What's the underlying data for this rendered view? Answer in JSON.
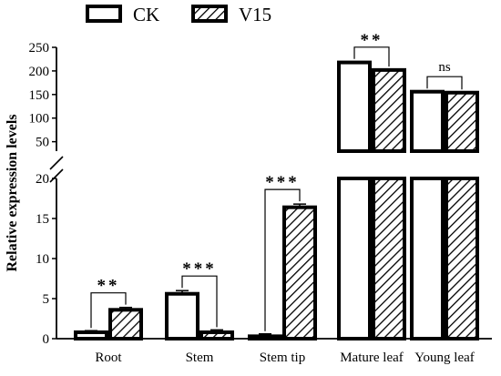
{
  "colors": {
    "ck_fill": "#ffffff",
    "v15_hatch": "#000000",
    "axis": "#000000"
  },
  "legend": [
    {
      "name": "CK",
      "pattern": "solid-white"
    },
    {
      "name": "V15",
      "pattern": "diagonal-hatch"
    }
  ],
  "chart_data": {
    "type": "bar",
    "ylabel": "Relative expression levels",
    "categories": [
      "Root",
      "Stem",
      "Stem tip",
      "Mature leaf",
      "Young leaf"
    ],
    "series": [
      {
        "name": "CK",
        "values": [
          0.8,
          5.6,
          0.3,
          218,
          156
        ],
        "errors": [
          0.2,
          0.4,
          0.3,
          1.5,
          1.0
        ]
      },
      {
        "name": "V15",
        "values": [
          3.6,
          0.8,
          16.4,
          202,
          154
        ],
        "errors": [
          0.3,
          0.3,
          0.4,
          1.5,
          1.0
        ]
      }
    ],
    "broken_axis": {
      "lower": {
        "ylim": [
          0,
          20
        ],
        "ticks": [
          "0",
          "5",
          "10",
          "15",
          "20"
        ]
      },
      "upper": {
        "ylim": [
          30,
          250
        ],
        "ticks": [
          "50",
          "100",
          "150",
          "200",
          "250"
        ]
      }
    },
    "significance": [
      "**",
      "***",
      "***",
      "**",
      "ns"
    ],
    "legend_position": "top-left"
  }
}
